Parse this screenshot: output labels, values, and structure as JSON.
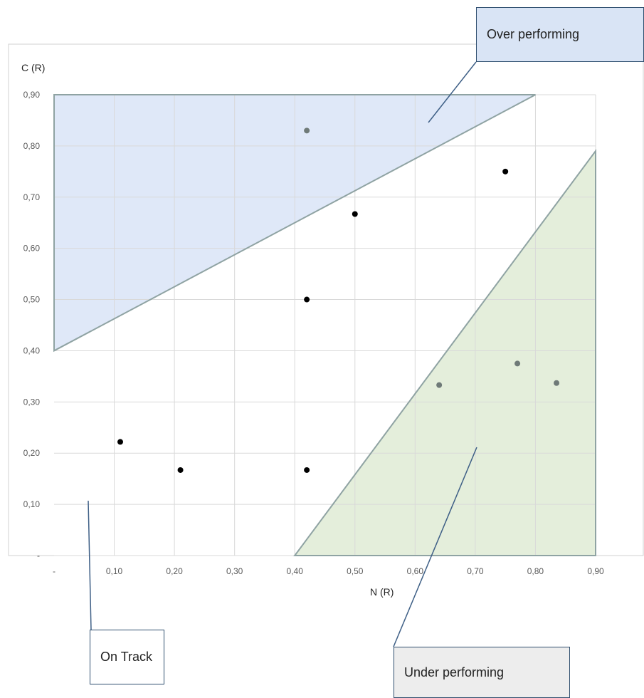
{
  "chart_data": {
    "type": "scatter",
    "title": "",
    "xlabel": "N (R)",
    "ylabel": "C (R)",
    "xlim": [
      0,
      0.9
    ],
    "ylim": [
      0,
      0.9
    ],
    "grid": true,
    "x_ticks": [
      {
        "value": 0,
        "label": "-"
      },
      {
        "value": 0.1,
        "label": "0,10"
      },
      {
        "value": 0.2,
        "label": "0,20"
      },
      {
        "value": 0.3,
        "label": "0,30"
      },
      {
        "value": 0.4,
        "label": "0,40"
      },
      {
        "value": 0.5,
        "label": "0,50"
      },
      {
        "value": 0.6,
        "label": "0,60"
      },
      {
        "value": 0.7,
        "label": "0,70"
      },
      {
        "value": 0.8,
        "label": "0,80"
      },
      {
        "value": 0.9,
        "label": "0,90"
      }
    ],
    "y_ticks": [
      {
        "value": 0,
        "label": "-"
      },
      {
        "value": 0.1,
        "label": "0,10"
      },
      {
        "value": 0.2,
        "label": "0,20"
      },
      {
        "value": 0.3,
        "label": "0,30"
      },
      {
        "value": 0.4,
        "label": "0,40"
      },
      {
        "value": 0.5,
        "label": "0,50"
      },
      {
        "value": 0.6,
        "label": "0,60"
      },
      {
        "value": 0.7,
        "label": "0,70"
      },
      {
        "value": 0.8,
        "label": "0,80"
      },
      {
        "value": 0.9,
        "label": "0,90"
      }
    ],
    "regions": [
      {
        "name": "over-performing",
        "fill": "#dfe8f8",
        "points": [
          [
            0,
            0.4
          ],
          [
            0.8,
            0.9
          ],
          [
            0,
            0.9
          ]
        ]
      },
      {
        "name": "under-performing",
        "fill": "#e4eedb",
        "points": [
          [
            0.4,
            0
          ],
          [
            0.9,
            0.79
          ],
          [
            0.9,
            0
          ]
        ]
      }
    ],
    "region_border_color": "#8fa3a3",
    "points": [
      {
        "x": 0.42,
        "y": 0.83,
        "color": "#6f7a78"
      },
      {
        "x": 0.75,
        "y": 0.75,
        "color": "#000000"
      },
      {
        "x": 0.5,
        "y": 0.667,
        "color": "#000000"
      },
      {
        "x": 0.42,
        "y": 0.5,
        "color": "#000000"
      },
      {
        "x": 0.64,
        "y": 0.333,
        "color": "#6f7a78"
      },
      {
        "x": 0.77,
        "y": 0.375,
        "color": "#6f7a78"
      },
      {
        "x": 0.835,
        "y": 0.337,
        "color": "#6f7a78"
      },
      {
        "x": 0.11,
        "y": 0.222,
        "color": "#000000"
      },
      {
        "x": 0.21,
        "y": 0.167,
        "color": "#000000"
      },
      {
        "x": 0.42,
        "y": 0.167,
        "color": "#000000"
      }
    ]
  },
  "callouts": {
    "over": "Over performing",
    "on_track": "On Track",
    "under": "Under performing"
  },
  "colors": {
    "over_box_fill": "#d9e4f5",
    "on_track_box_fill": "#ffffff",
    "under_box_fill": "#ededed",
    "leader_line": "#3e5f86",
    "gridline": "#d9d9d9",
    "frame": "#d0d0d0"
  }
}
